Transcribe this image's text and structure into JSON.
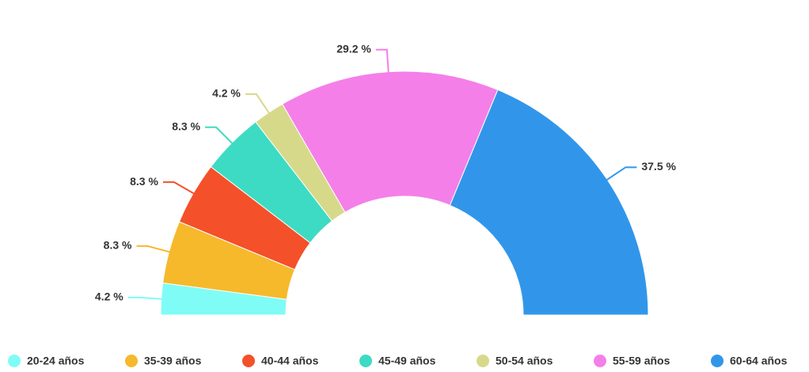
{
  "chart_data": {
    "type": "semi-donut",
    "categories": [
      "20-24 años",
      "35-39 años",
      "40-44 años",
      "45-49 años",
      "50-54 años",
      "55-59 años",
      "60-64 años"
    ],
    "values": [
      4.2,
      8.3,
      8.3,
      8.3,
      4.2,
      29.2,
      37.5
    ],
    "value_labels": [
      "4.2 %",
      "8.3 %",
      "8.3 %",
      "8.3 %",
      "4.2 %",
      "29.2 %",
      "37.5 %"
    ],
    "colors": [
      "#7ffcf6",
      "#f6b92b",
      "#f4502a",
      "#3ddbc3",
      "#d7d98a",
      "#f47fe8",
      "#3196ea"
    ],
    "legend": "bottom"
  }
}
